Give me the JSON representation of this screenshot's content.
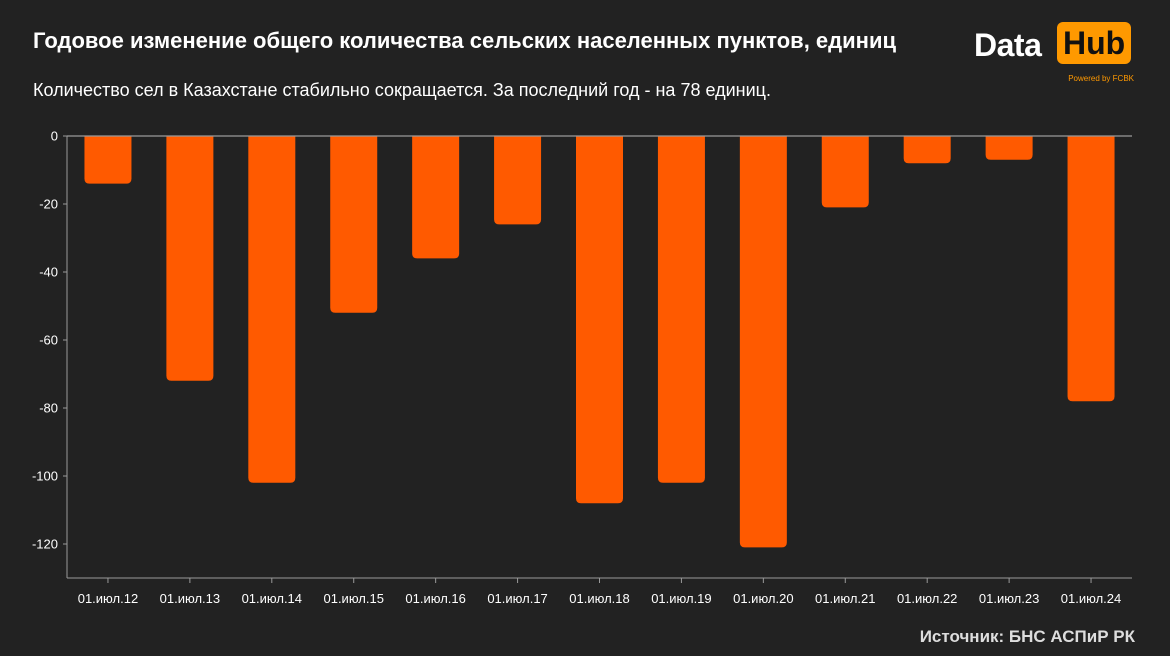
{
  "header": {
    "title": "Годовое изменение общего количества сельских населенных пунктов, единиц",
    "subtitle": "Количество сел в Казахстане стабильно сокращается. За последний год - на 78 единиц."
  },
  "logo": {
    "data_text": "Data",
    "hub_text": "Hub",
    "powered_text": "Powered by FCBK"
  },
  "footer": {
    "source": "Источник: БНС АСПиР РК"
  },
  "colors": {
    "bar": "#ff5a00",
    "background": "#222222",
    "axis": "#9a9a9a",
    "logo_accent": "#ff9900"
  },
  "chart_data": {
    "type": "bar",
    "categories": [
      "01.июл.12",
      "01.июл.13",
      "01.июл.14",
      "01.июл.15",
      "01.июл.16",
      "01.июл.17",
      "01.июл.18",
      "01.июл.19",
      "01.июл.20",
      "01.июл.21",
      "01.июл.22",
      "01.июл.23",
      "01.июл.24"
    ],
    "values": [
      -14,
      -72,
      -102,
      -52,
      -36,
      -26,
      -108,
      -102,
      -121,
      -21,
      -8,
      -7,
      -78
    ],
    "ylim": [
      -130,
      0
    ],
    "yticks": [
      0,
      -20,
      -40,
      -60,
      -80,
      -100,
      -120
    ],
    "xlabel": "",
    "ylabel": "",
    "grid": false,
    "legend": "none"
  }
}
